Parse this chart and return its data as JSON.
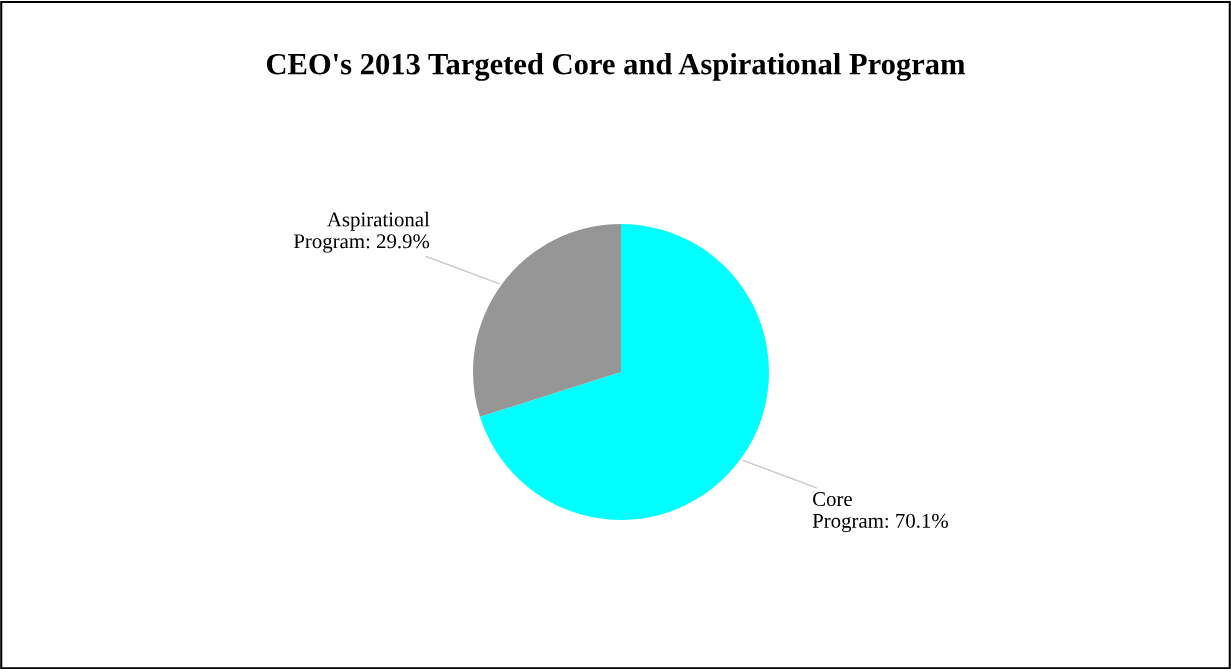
{
  "chart_data": {
    "type": "pie",
    "title": "CEO's 2013 Targeted Core and Aspirational Program",
    "categories": [
      "Core Program",
      "Aspirational Program"
    ],
    "values": [
      70.1,
      29.9
    ],
    "value_labels": [
      "70.1%",
      "29.9%"
    ],
    "colors": [
      "#00ffff",
      "#969696"
    ]
  }
}
